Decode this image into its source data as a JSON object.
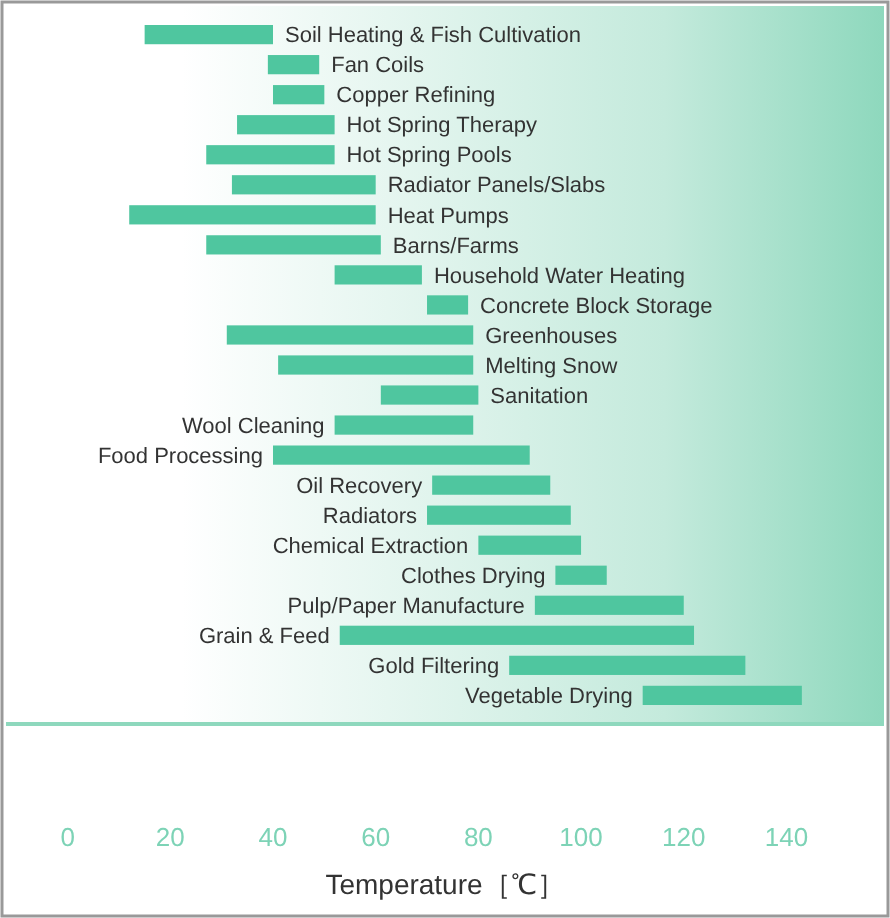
{
  "chart_data": {
    "type": "bar",
    "orientation": "horizontal",
    "xlabel": "Temperature［℃］",
    "categories": [
      "Soil Heating & Fish Cultivation",
      "Fan Coils",
      "Copper Refining",
      "Hot Spring Therapy",
      "Hot Spring Pools",
      "Radiator Panels/Slabs",
      "Heat Pumps",
      "Barns/Farms",
      "Household Water Heating",
      "Concrete Block Storage",
      "Greenhouses",
      "Melting Snow",
      "Sanitation",
      "Wool Cleaning",
      "Food Processing",
      "Oil Recovery",
      "Radiators",
      "Chemical Extraction",
      "Clothes Drying",
      "Pulp/Paper Manufacture",
      "Grain & Feed",
      "Gold Filtering",
      "Vegetable Drying"
    ],
    "base": [
      15,
      39,
      40,
      33,
      27,
      32,
      12,
      27,
      52,
      70,
      31,
      41,
      61,
      52,
      40,
      71,
      70,
      80,
      95,
      91,
      53,
      86,
      112
    ],
    "values": [
      25,
      10,
      10,
      19,
      25,
      28,
      48,
      34,
      17,
      8,
      48,
      38,
      19,
      27,
      50,
      23,
      28,
      20,
      10,
      29,
      69,
      46,
      31
    ],
    "color": "#4fc69f",
    "xlim": [
      -12,
      159
    ],
    "xticks": [
      0,
      20,
      40,
      60,
      80,
      100,
      120,
      140
    ],
    "grid": false
  }
}
